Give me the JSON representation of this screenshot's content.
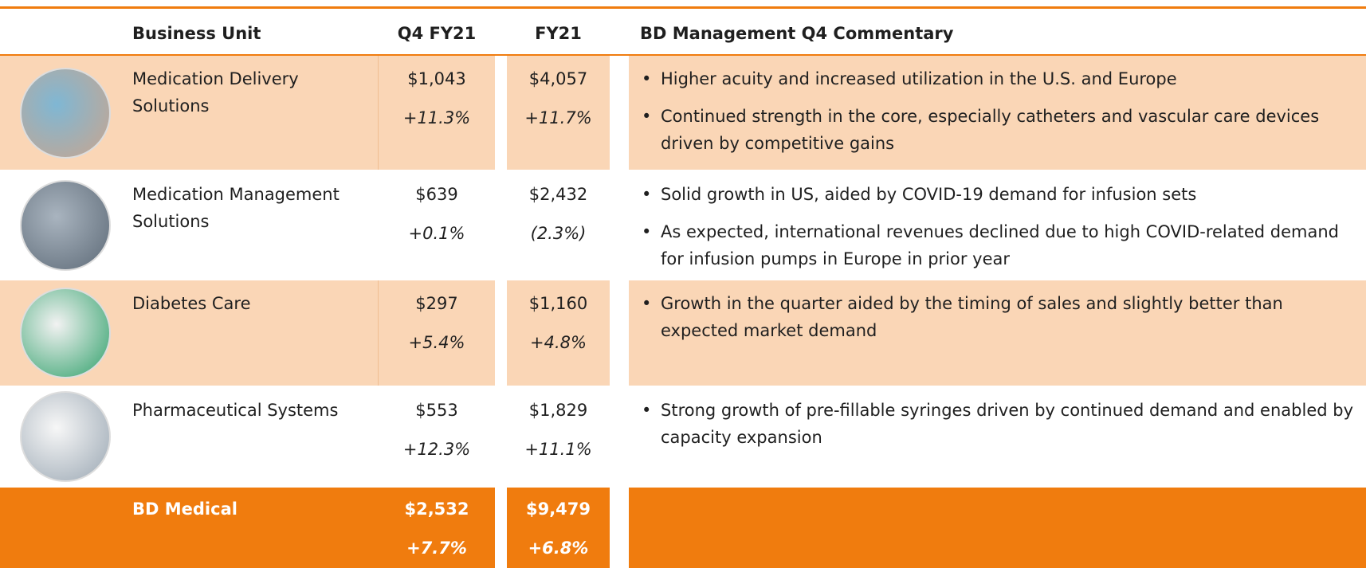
{
  "table": {
    "header": [
      "Business Unit",
      "Q4 FY21",
      "FY21",
      "BD Management Q4 Commentary"
    ],
    "rows": [
      {
        "unit": "Medication Delivery Solutions",
        "q4": "$1,043",
        "q4_growth": "+11.3%",
        "fy": "$4,057",
        "fy_growth": "+11.7%",
        "commentary": [
          "Higher acuity and increased utilization in the U.S. and Europe",
          "Continued strength in the core, especially catheters and vascular care devices driven by competitive gains"
        ]
      },
      {
        "unit": "Medication Management Solutions",
        "q4": "$639",
        "q4_growth": "+0.1%",
        "fy": "$2,432",
        "fy_growth": "(2.3%)",
        "commentary": [
          "Solid growth in US, aided by COVID-19 demand for infusion sets",
          "As expected, international revenues declined due to high COVID-related demand for infusion pumps in Europe in prior year"
        ]
      },
      {
        "unit": "Diabetes Care",
        "q4": "$297",
        "q4_growth": "+5.4%",
        "fy": "$1,160",
        "fy_growth": "+4.8%",
        "commentary": [
          "Growth in the quarter aided by the timing of sales and slightly better than expected market demand"
        ]
      },
      {
        "unit": "Pharmaceutical Systems",
        "q4": "$553",
        "q4_growth": "+12.3%",
        "fy": "$1,829",
        "fy_growth": "+11.1%",
        "commentary": [
          "Strong growth of pre-fillable syringes driven by continued demand and enabled by capacity expansion"
        ]
      }
    ],
    "total": {
      "unit": "BD Medical",
      "q4": "$2,532",
      "q4_growth": "+7.7%",
      "fy": "$9,479",
      "fy_growth": "+6.8%"
    }
  }
}
